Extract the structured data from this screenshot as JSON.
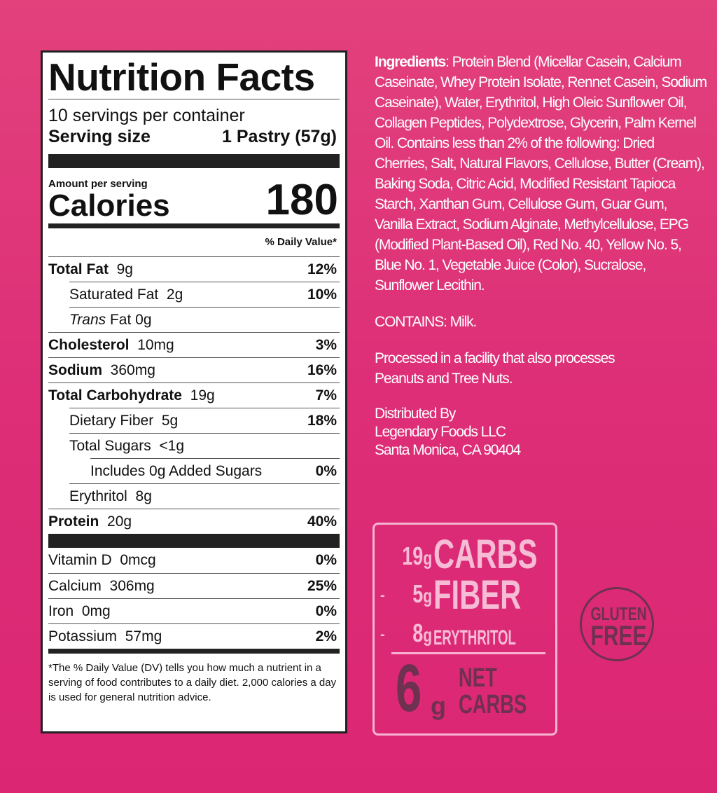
{
  "label": {
    "title": "Nutrition Facts",
    "servings": "10 servings per container",
    "serving_size_label": "Serving size",
    "serving_size_value": "1 Pastry (57g)",
    "amount_per_serving": "Amount per serving",
    "calories_label": "Calories",
    "calories_value": "180",
    "dv_header": "% Daily Value*",
    "rows": [
      {
        "name": "Total Fat",
        "amount": "9g",
        "dv": "12%"
      },
      {
        "name": "Saturated Fat",
        "amount": "2g",
        "dv": "10%"
      },
      {
        "name": "Trans",
        "name2": "Fat 0g",
        "dv": ""
      },
      {
        "name": "Cholesterol",
        "amount": "10mg",
        "dv": "3%"
      },
      {
        "name": "Sodium",
        "amount": "360mg",
        "dv": "16%"
      },
      {
        "name": "Total Carbohydrate",
        "amount": "19g",
        "dv": "7%"
      },
      {
        "name": "Dietary Fiber",
        "amount": "5g",
        "dv": "18%"
      },
      {
        "name": "Total Sugars",
        "amount": "<1g",
        "dv": ""
      },
      {
        "name": "Includes 0g Added Sugars",
        "dv": "0%"
      },
      {
        "name": "Erythritol",
        "amount": "8g",
        "dv": ""
      },
      {
        "name": "Protein",
        "amount": "20g",
        "dv": "40%"
      }
    ],
    "vitamins": [
      {
        "name": "Vitamin D",
        "amount": "0mcg",
        "dv": "0%"
      },
      {
        "name": "Calcium",
        "amount": "306mg",
        "dv": "25%"
      },
      {
        "name": "Iron",
        "amount": "0mg",
        "dv": "0%"
      },
      {
        "name": "Potassium",
        "amount": "57mg",
        "dv": "2%"
      }
    ],
    "footnote": "*The % Daily Value (DV) tells you how much a nutrient in a serving of food contributes to a daily diet. 2,000 calories a day is used for general nutrition advice."
  },
  "ingredients": {
    "heading": "Ingredients",
    "text": ": Protein Blend (Micellar Casein, Calcium Caseinate, Whey Protein Isolate, Rennet Casein, Sodium Caseinate), Water, Erythritol, High Oleic Sunflower Oil, Collagen Peptides, Polydextrose, Glycerin, Palm Kernel Oil. Contains less than 2% of the following: Dried Cherries, Salt, Natural Flavors, Cellulose, Butter (Cream), Baking Soda, Citric Acid, Modified Resistant Tapioca Starch, Xanthan Gum, Cellulose Gum, Guar Gum, Vanilla Extract, Sodium Alginate, Methylcellulose, EPG (Modified Plant-Based Oil), Red No. 40, Yellow No. 5, Blue No. 1, Vegetable Juice (Color), Sucralose, Sunflower Lecithin.",
    "contains": "CONTAINS: Milk.",
    "facility": "Processed in a facility that also processes Peanuts and Tree Nuts.",
    "distributed_by": "Distributed By",
    "company": "Legendary Foods LLC",
    "address": "Santa Monica, CA 90404"
  },
  "net_carbs_box": {
    "lines": [
      {
        "prefix": "",
        "num": "19",
        "unit": "g",
        "word": "CARBS"
      },
      {
        "prefix": "-",
        "num": "5",
        "unit": "g",
        "word": "FIBER"
      },
      {
        "prefix": "-",
        "num": "8",
        "unit": "g",
        "word": "ERYTHRITOL"
      }
    ],
    "result_num": "6",
    "result_unit": "g",
    "result_word1": "NET",
    "result_word2": "CARBS"
  },
  "badge": {
    "line1": "GLUTEN",
    "line2": "FREE"
  },
  "colors": {
    "background": "#dd2e77",
    "box_text": "#f6bcd6",
    "dark_text": "#6e3150"
  }
}
